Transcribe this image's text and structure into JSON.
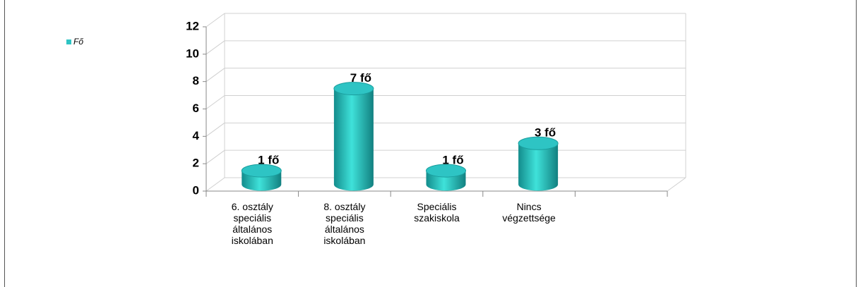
{
  "chart_data": {
    "type": "bar",
    "style": "3d-cylinder",
    "categories": [
      "6. osztály speciális általános iskolában",
      "8. osztály speciális általános iskolában",
      "Speciális szakiskola",
      "Nincs végzettsége",
      null
    ],
    "series": [
      {
        "name": "Fő",
        "color": "#2ec4c4",
        "values": [
          1,
          7,
          1,
          3,
          null
        ],
        "value_labels": [
          "1 fő",
          "7 fő",
          "1 fő",
          "3 fő",
          null
        ]
      }
    ],
    "ylim": [
      0,
      12
    ],
    "yticks": [
      0,
      2,
      4,
      6,
      8,
      10,
      12
    ],
    "grid": true,
    "legend": "top-left"
  }
}
